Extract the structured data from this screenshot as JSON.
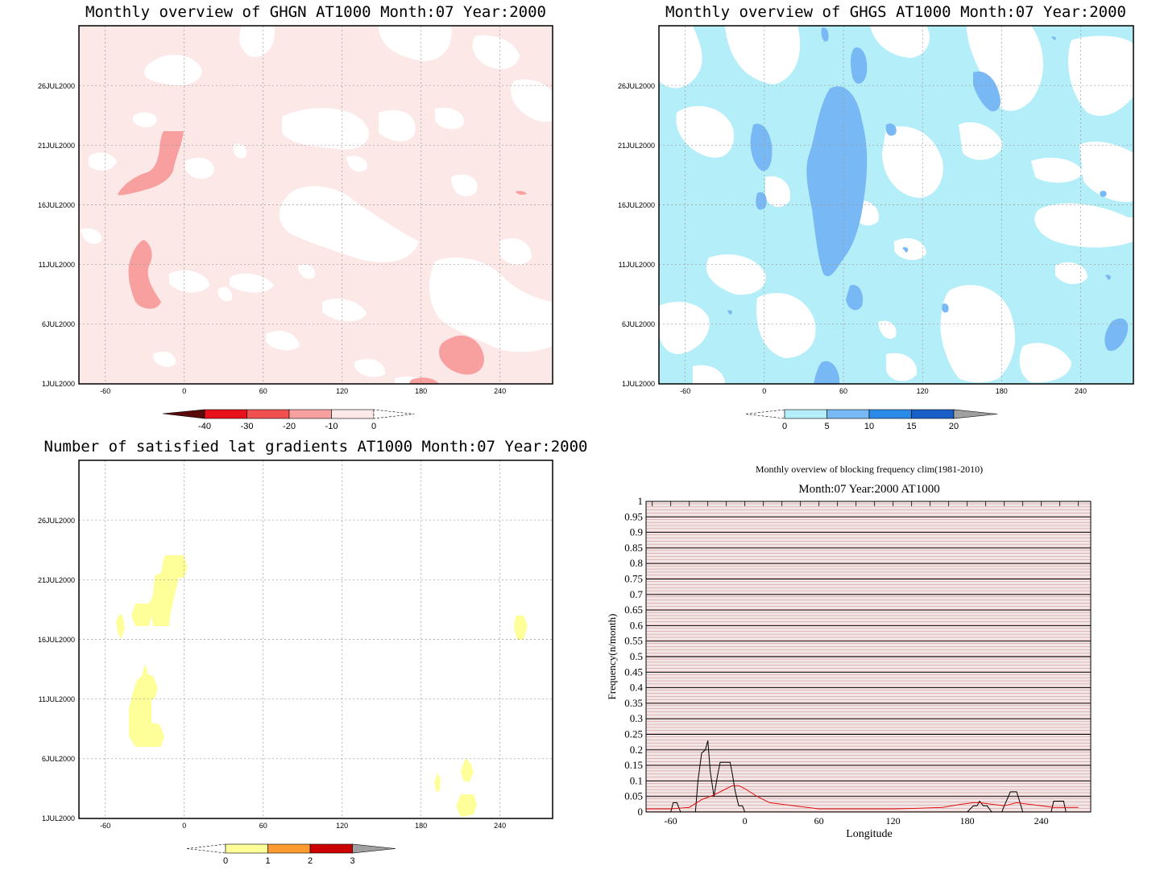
{
  "panels": [
    {
      "title": "Monthly overview of GHGN AT1000 Month:07 Year:2000",
      "x_ticks": [
        "-60",
        "0",
        "60",
        "120",
        "180",
        "240"
      ],
      "y_ticks": [
        "1JUL2000",
        "6JUL2000",
        "11JUL2000",
        "16JUL2000",
        "21JUL2000",
        "26JUL2000"
      ],
      "background": "#fde8e8",
      "colorbar": {
        "labels": [
          "-40",
          "-30",
          "-20",
          "-10",
          "0"
        ],
        "colors": [
          "#5a0a0a",
          "#e8101a",
          "#f05050",
          "#f8a0a0",
          "#fde8e8"
        ]
      }
    },
    {
      "title": "Monthly overview of GHGS AT1000 Month:07 Year:2000",
      "x_ticks": [
        "-60",
        "0",
        "60",
        "120",
        "180",
        "240"
      ],
      "y_ticks": [
        "1JUL2000",
        "6JUL2000",
        "11JUL2000",
        "16JUL2000",
        "21JUL2000",
        "26JUL2000"
      ],
      "background": "#b4eef8",
      "colorbar": {
        "labels": [
          "0",
          "5",
          "10",
          "15",
          "20"
        ],
        "colors": [
          "#b4eef8",
          "#78b8f4",
          "#2c8ae8",
          "#1860c8",
          "#a0a0a0"
        ]
      }
    },
    {
      "title": "Number of satisfied lat gradients AT1000 Month:07 Year:2000",
      "x_ticks": [
        "-60",
        "0",
        "60",
        "120",
        "180",
        "240"
      ],
      "y_ticks": [
        "1JUL2000",
        "6JUL2000",
        "11JUL2000",
        "16JUL2000",
        "21JUL2000",
        "26JUL2000"
      ],
      "background": "#ffffff",
      "colorbar": {
        "labels": [
          "0",
          "1",
          "2",
          "3"
        ],
        "colors": [
          "#ffff99",
          "#ff9a30",
          "#cc0000",
          "#a0a0a0"
        ]
      }
    }
  ],
  "line_chart": {
    "suptitle": "Monthly overview of blocking frequency clim(1981-2010)",
    "title": "Month:07 Year:2000  AT1000",
    "xlabel": "Longitude",
    "ylabel": "Frequency(n/month)",
    "x_ticks": [
      "-60",
      "0",
      "60",
      "120",
      "180",
      "240"
    ],
    "y_ticks": [
      "0",
      "0.05",
      "0.1",
      "0.15",
      "0.2",
      "0.25",
      "0.3",
      "0.35",
      "0.4",
      "0.45",
      "0.5",
      "0.55",
      "0.6",
      "0.65",
      "0.7",
      "0.75",
      "0.8",
      "0.85",
      "0.9",
      "0.95",
      "1"
    ]
  },
  "chart_data": [
    {
      "type": "heatmap",
      "title": "Monthly overview of GHGN AT1000 Month:07 Year:2000",
      "xlim": [
        -75,
        285
      ],
      "x_ticks": [
        -60,
        0,
        60,
        120,
        180,
        240
      ],
      "y_ticks": [
        "1JUL2000",
        "6JUL2000",
        "11JUL2000",
        "16JUL2000",
        "21JUL2000",
        "26JUL2000"
      ],
      "levels": [
        -40,
        -30,
        -20,
        -10,
        0
      ],
      "palette": "red"
    },
    {
      "type": "heatmap",
      "title": "Monthly overview of GHGS AT1000 Month:07 Year:2000",
      "xlim": [
        -75,
        285
      ],
      "x_ticks": [
        -60,
        0,
        60,
        120,
        180,
        240
      ],
      "y_ticks": [
        "1JUL2000",
        "6JUL2000",
        "11JUL2000",
        "16JUL2000",
        "21JUL2000",
        "26JUL2000"
      ],
      "levels": [
        0,
        5,
        10,
        15,
        20
      ],
      "palette": "blue"
    },
    {
      "type": "heatmap",
      "title": "Number of satisfied lat gradients AT1000 Month:07 Year:2000",
      "xlim": [
        -75,
        285
      ],
      "x_ticks": [
        -60,
        0,
        60,
        120,
        180,
        240
      ],
      "y_ticks": [
        "1JUL2000",
        "6JUL2000",
        "11JUL2000",
        "16JUL2000",
        "21JUL2000",
        "26JUL2000"
      ],
      "levels": [
        0,
        1,
        2,
        3
      ],
      "palette": "yellow-red"
    },
    {
      "type": "line",
      "title": "Month:07 Year:2000  AT1000",
      "xlabel": "Longitude",
      "ylabel": "Frequency(n/month)",
      "xlim": [
        -80,
        280
      ],
      "ylim": [
        0,
        1
      ],
      "grid": true,
      "series": [
        {
          "color": "#000000",
          "x": [
            -80,
            -60,
            -58,
            -55,
            -52,
            -40,
            -38,
            -35,
            -32,
            -30,
            -28,
            -25,
            -22,
            -20,
            -15,
            -12,
            -10,
            -8,
            -5,
            -2,
            0,
            5,
            10,
            60,
            180,
            185,
            188,
            190,
            193,
            196,
            200,
            205,
            208,
            210,
            215,
            220,
            222,
            225,
            228,
            240,
            248,
            250,
            255,
            258,
            260,
            270
          ],
          "y": [
            0,
            0,
            0.03,
            0.03,
            0,
            0,
            0.1,
            0.19,
            0.2,
            0.23,
            0.13,
            0.05,
            0.12,
            0.16,
            0.16,
            0.16,
            0.12,
            0.07,
            0.02,
            0.02,
            0,
            0,
            0,
            0,
            0,
            0.02,
            0.02,
            0.035,
            0.02,
            0.02,
            0,
            0,
            0,
            0.02,
            0.065,
            0.065,
            0.04,
            0,
            0,
            0,
            0,
            0.035,
            0.035,
            0.035,
            0,
            0
          ]
        },
        {
          "color": "#e01010",
          "x": [
            -80,
            -60,
            -45,
            -35,
            -25,
            -15,
            -10,
            -5,
            0,
            10,
            20,
            30,
            40,
            60,
            80,
            100,
            120,
            140,
            160,
            175,
            185,
            190,
            200,
            210,
            220,
            230,
            240,
            250,
            260,
            270
          ],
          "y": [
            0.01,
            0.01,
            0.015,
            0.04,
            0.055,
            0.075,
            0.085,
            0.085,
            0.075,
            0.05,
            0.03,
            0.025,
            0.02,
            0.01,
            0.01,
            0.01,
            0.01,
            0.012,
            0.015,
            0.025,
            0.03,
            0.03,
            0.025,
            0.02,
            0.03,
            0.025,
            0.02,
            0.015,
            0.015,
            0.015
          ]
        }
      ]
    }
  ]
}
